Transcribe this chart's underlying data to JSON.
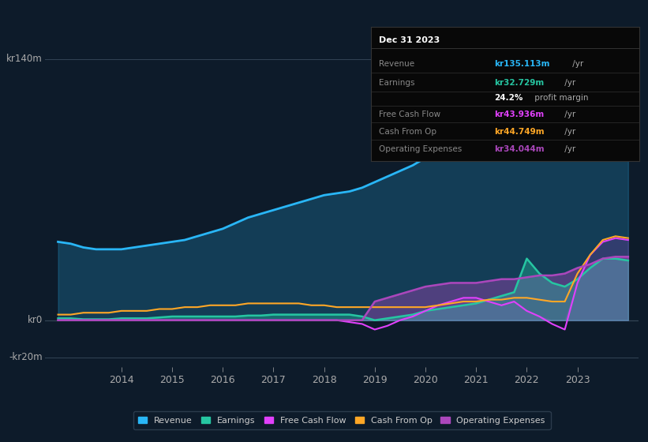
{
  "bg_color": "#0d1b2a",
  "plot_bg_color": "#0d1b2a",
  "ylabel_top": "kr140m",
  "ylabel_zero": "kr0",
  "ylabel_neg": "-kr20m",
  "xlim": [
    2012.5,
    2024.2
  ],
  "ylim": [
    -25,
    155
  ],
  "xtick_labels": [
    "2014",
    "2015",
    "2016",
    "2017",
    "2018",
    "2019",
    "2020",
    "2021",
    "2022",
    "2023"
  ],
  "xtick_positions": [
    2014,
    2015,
    2016,
    2017,
    2018,
    2019,
    2020,
    2021,
    2022,
    2023
  ],
  "legend_items": [
    {
      "label": "Revenue",
      "color": "#29b6f6"
    },
    {
      "label": "Earnings",
      "color": "#26c6a2"
    },
    {
      "label": "Free Cash Flow",
      "color": "#e040fb"
    },
    {
      "label": "Cash From Op",
      "color": "#ffa726"
    },
    {
      "label": "Operating Expenses",
      "color": "#ab47bc"
    }
  ],
  "info_box": {
    "title": "Dec 31 2023",
    "rows": [
      {
        "label": "Revenue",
        "value": "kr135.113m",
        "unit": " /yr",
        "value_color": "#29b6f6",
        "bold": true
      },
      {
        "label": "Earnings",
        "value": "kr32.729m",
        "unit": " /yr",
        "value_color": "#26c6a2",
        "bold": true
      },
      {
        "label": "",
        "value": "24.2%",
        "unit": " profit margin",
        "value_color": "#ffffff",
        "bold": true
      },
      {
        "label": "Free Cash Flow",
        "value": "kr43.936m",
        "unit": " /yr",
        "value_color": "#e040fb",
        "bold": true
      },
      {
        "label": "Cash From Op",
        "value": "kr44.749m",
        "unit": " /yr",
        "value_color": "#ffa726",
        "bold": true
      },
      {
        "label": "Operating Expenses",
        "value": "kr34.044m",
        "unit": " /yr",
        "value_color": "#ab47bc",
        "bold": true
      }
    ]
  },
  "series": {
    "years": [
      2012.75,
      2013.0,
      2013.25,
      2013.5,
      2013.75,
      2014.0,
      2014.25,
      2014.5,
      2014.75,
      2015.0,
      2015.25,
      2015.5,
      2015.75,
      2016.0,
      2016.25,
      2016.5,
      2016.75,
      2017.0,
      2017.25,
      2017.5,
      2017.75,
      2018.0,
      2018.25,
      2018.5,
      2018.75,
      2019.0,
      2019.25,
      2019.5,
      2019.75,
      2020.0,
      2020.25,
      2020.5,
      2020.75,
      2021.0,
      2021.25,
      2021.5,
      2021.75,
      2022.0,
      2022.25,
      2022.5,
      2022.75,
      2023.0,
      2023.25,
      2023.5,
      2023.75,
      2024.0
    ],
    "revenue": [
      42,
      41,
      39,
      38,
      38,
      38,
      39,
      40,
      41,
      42,
      43,
      45,
      47,
      49,
      52,
      55,
      57,
      59,
      61,
      63,
      65,
      67,
      68,
      69,
      71,
      74,
      77,
      80,
      83,
      87,
      90,
      93,
      95,
      97,
      99,
      100,
      92,
      95,
      103,
      115,
      128,
      135,
      138,
      140,
      140,
      135
    ],
    "earnings": [
      1,
      1,
      0.5,
      0.5,
      0.5,
      1,
      1,
      1,
      1.5,
      2,
      2,
      2,
      2,
      2,
      2,
      2.5,
      2.5,
      3,
      3,
      3,
      3,
      3,
      3,
      3,
      2,
      0,
      1,
      2,
      3,
      5,
      6,
      7,
      8,
      9,
      11,
      13,
      15,
      33,
      25,
      20,
      18,
      22,
      28,
      33,
      33,
      32
    ],
    "free_cash_flow": [
      0,
      0,
      0,
      0,
      0,
      0,
      0,
      0,
      0,
      0,
      0,
      0,
      0,
      0,
      0,
      0,
      0,
      0,
      0,
      0,
      0,
      0,
      0,
      -1,
      -2,
      -5,
      -3,
      0,
      2,
      5,
      8,
      10,
      12,
      12,
      10,
      8,
      10,
      5,
      2,
      -2,
      -5,
      20,
      35,
      42,
      44,
      43
    ],
    "cash_from_op": [
      3,
      3,
      4,
      4,
      4,
      5,
      5,
      5,
      6,
      6,
      7,
      7,
      8,
      8,
      8,
      9,
      9,
      9,
      9,
      9,
      8,
      8,
      7,
      7,
      7,
      7,
      7,
      7,
      7,
      7,
      8,
      9,
      10,
      10,
      11,
      11,
      12,
      12,
      11,
      10,
      10,
      25,
      35,
      43,
      45,
      44
    ],
    "operating_expenses": [
      0,
      0,
      0,
      0,
      0,
      0,
      0,
      0,
      0,
      0,
      0,
      0,
      0,
      0,
      0,
      0,
      0,
      0,
      0,
      0,
      0,
      0,
      0,
      0,
      0,
      10,
      12,
      14,
      16,
      18,
      19,
      20,
      20,
      20,
      21,
      22,
      22,
      23,
      24,
      24,
      25,
      28,
      30,
      33,
      34,
      34
    ]
  }
}
